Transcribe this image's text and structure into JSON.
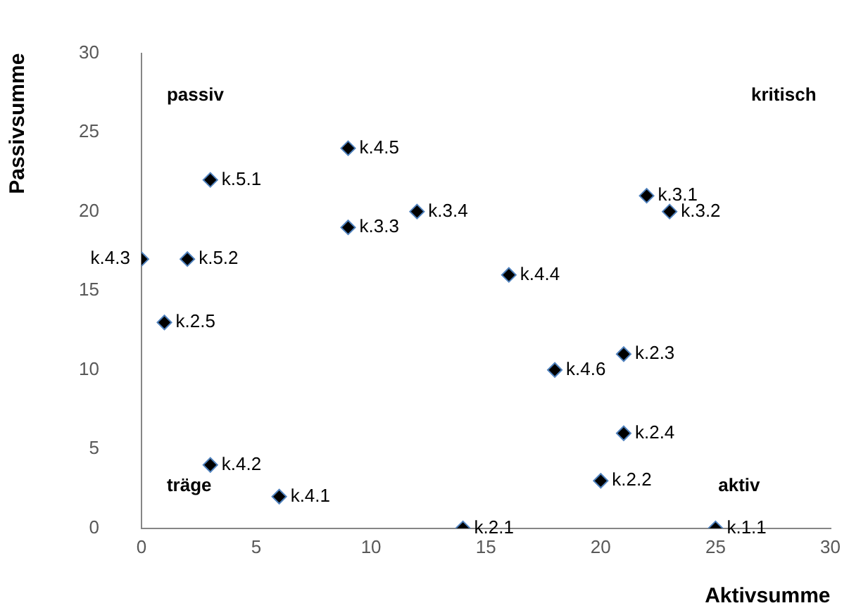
{
  "chart_data": {
    "type": "scatter",
    "xlabel": "Aktivsumme",
    "ylabel": "Passivsumme",
    "x": [
      9,
      3,
      12,
      9,
      0,
      2,
      16,
      1,
      18,
      21,
      21,
      3,
      6,
      14,
      20,
      25,
      22,
      23
    ],
    "series": [
      {
        "color": "#000000",
        "values": [
          24,
          22,
          20,
          19,
          17,
          17,
          16,
          13,
          10,
          11,
          6,
          4,
          2,
          0,
          3,
          0,
          21,
          20
        ],
        "value_labels": [
          "k.4.5",
          "k.5.1",
          "k.3.4",
          "k.3.3",
          "k.4.3",
          "k.5.2",
          "k.4.4",
          "k.2.5",
          "k.4.6",
          "k.2.3",
          "k.2.4",
          "k.4.2",
          "k.4.1",
          "k.2.1",
          "k.2.2",
          "k.1.1",
          "k.3.1",
          "k.3.2"
        ]
      }
    ],
    "annotations": [
      "passiv",
      "kritisch",
      "träge",
      "aktiv"
    ],
    "xlim": [
      0,
      30
    ],
    "ylim": [
      0,
      30
    ],
    "xticks": [
      0,
      5,
      10,
      15,
      20,
      25,
      30
    ],
    "yticks": [
      0,
      5,
      10,
      15,
      20,
      25,
      30
    ],
    "marker": "diamond",
    "grid": false,
    "legend": false
  }
}
